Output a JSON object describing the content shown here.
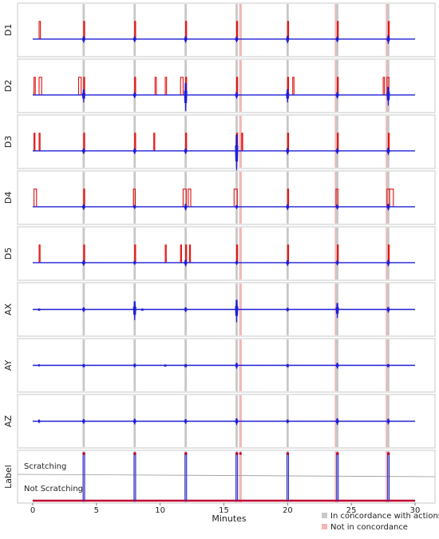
{
  "chart_data": {
    "type": "line",
    "xlabel": "Minutes",
    "x_ticks": [
      0,
      5,
      10,
      15,
      20,
      25,
      30
    ],
    "xlim": [
      0,
      30
    ],
    "colors": {
      "signal": "#1f1fd6",
      "event": "#e01010",
      "concord_band": "#c8c8c8",
      "nonconcord_band": "#f4b6b6",
      "label_line": "#c00030"
    },
    "bands": {
      "in_concordance": [
        4.0,
        8.0,
        12.0,
        16.0,
        20.0,
        23.9,
        27.9
      ],
      "not_in_concordance": [
        16.3,
        23.8,
        27.8
      ]
    },
    "panels": [
      {
        "name": "D1",
        "pulses": [
          {
            "start": 0.5,
            "end": 0.6,
            "height": 1.0
          },
          {
            "start": 4.0,
            "end": 4.05,
            "height": 1.0
          },
          {
            "start": 8.0,
            "end": 8.05,
            "height": 1.0
          },
          {
            "start": 12.0,
            "end": 12.05,
            "height": 1.0
          },
          {
            "start": 16.0,
            "end": 16.05,
            "height": 1.0
          },
          {
            "start": 20.0,
            "end": 20.05,
            "height": 1.0
          },
          {
            "start": 23.9,
            "end": 23.95,
            "height": 1.0
          },
          {
            "start": 27.9,
            "end": 27.95,
            "height": 1.0
          }
        ],
        "spikes": [
          {
            "x": 4.0,
            "amp": 0.35
          },
          {
            "x": 8.0,
            "amp": 0.3
          },
          {
            "x": 12.0,
            "amp": 0.35
          },
          {
            "x": 16.0,
            "amp": 0.3
          },
          {
            "x": 20.0,
            "amp": 0.4
          },
          {
            "x": 23.9,
            "amp": 0.3
          },
          {
            "x": 27.9,
            "amp": 0.45
          }
        ]
      },
      {
        "name": "D2",
        "pulses": [
          {
            "start": 0.1,
            "end": 0.2,
            "height": 1.0
          },
          {
            "start": 0.5,
            "end": 0.7,
            "height": 1.0
          },
          {
            "start": 3.6,
            "end": 3.8,
            "height": 1.0
          },
          {
            "start": 4.0,
            "end": 4.05,
            "height": 1.0
          },
          {
            "start": 8.0,
            "end": 8.05,
            "height": 1.0
          },
          {
            "start": 9.6,
            "end": 9.7,
            "height": 1.0
          },
          {
            "start": 10.4,
            "end": 10.5,
            "height": 1.0
          },
          {
            "start": 11.6,
            "end": 11.8,
            "height": 1.0
          },
          {
            "start": 12.0,
            "end": 12.05,
            "height": 1.0
          },
          {
            "start": 16.0,
            "end": 16.05,
            "height": 1.0
          },
          {
            "start": 20.0,
            "end": 20.05,
            "height": 1.0
          },
          {
            "start": 20.4,
            "end": 20.5,
            "height": 1.0
          },
          {
            "start": 23.9,
            "end": 23.95,
            "height": 1.0
          },
          {
            "start": 27.5,
            "end": 27.6,
            "height": 1.0
          },
          {
            "start": 27.8,
            "end": 27.95,
            "height": 1.0
          }
        ],
        "spikes": [
          {
            "x": 4.0,
            "amp": 0.7
          },
          {
            "x": 8.0,
            "amp": 0.3
          },
          {
            "x": 12.0,
            "amp": 1.5
          },
          {
            "x": 16.0,
            "amp": 0.35
          },
          {
            "x": 20.0,
            "amp": 0.7
          },
          {
            "x": 23.9,
            "amp": 0.35
          },
          {
            "x": 27.9,
            "amp": 1.0
          }
        ]
      },
      {
        "name": "D3",
        "pulses": [
          {
            "start": 0.1,
            "end": 0.15,
            "height": 1.0
          },
          {
            "start": 0.5,
            "end": 0.55,
            "height": 1.0
          },
          {
            "start": 4.0,
            "end": 4.05,
            "height": 1.0
          },
          {
            "start": 8.0,
            "end": 8.05,
            "height": 1.0
          },
          {
            "start": 9.5,
            "end": 9.55,
            "height": 1.0
          },
          {
            "start": 12.0,
            "end": 12.05,
            "height": 1.0
          },
          {
            "start": 16.0,
            "end": 16.05,
            "height": 1.0
          },
          {
            "start": 16.4,
            "end": 16.45,
            "height": 1.0
          },
          {
            "start": 20.0,
            "end": 20.05,
            "height": 1.0
          },
          {
            "start": 23.9,
            "end": 23.95,
            "height": 1.0
          },
          {
            "start": 27.9,
            "end": 27.95,
            "height": 1.0
          }
        ],
        "spikes": [
          {
            "x": 4.0,
            "amp": 0.3
          },
          {
            "x": 8.0,
            "amp": 0.3
          },
          {
            "x": 12.0,
            "amp": 0.3
          },
          {
            "x": 16.0,
            "amp": 2.0
          },
          {
            "x": 20.0,
            "amp": 0.35
          },
          {
            "x": 23.9,
            "amp": 0.3
          },
          {
            "x": 27.9,
            "amp": 0.4
          }
        ]
      },
      {
        "name": "D4",
        "pulses": [
          {
            "start": 0.1,
            "end": 0.3,
            "height": 1.0
          },
          {
            "start": 4.0,
            "end": 4.05,
            "height": 1.0
          },
          {
            "start": 7.9,
            "end": 8.05,
            "height": 1.0
          },
          {
            "start": 11.8,
            "end": 12.05,
            "height": 1.0
          },
          {
            "start": 12.2,
            "end": 12.4,
            "height": 1.0
          },
          {
            "start": 15.8,
            "end": 16.05,
            "height": 1.0
          },
          {
            "start": 20.0,
            "end": 20.05,
            "height": 1.0
          },
          {
            "start": 23.8,
            "end": 23.95,
            "height": 1.0
          },
          {
            "start": 27.8,
            "end": 28.0,
            "height": 1.0
          },
          {
            "start": 28.0,
            "end": 28.3,
            "height": 1.0
          }
        ],
        "spikes": [
          {
            "x": 4.0,
            "amp": 0.3
          },
          {
            "x": 8.0,
            "amp": 0.2
          },
          {
            "x": 12.0,
            "amp": 0.35
          },
          {
            "x": 16.0,
            "amp": 0.2
          },
          {
            "x": 20.0,
            "amp": 0.3
          },
          {
            "x": 23.9,
            "amp": 0.25
          },
          {
            "x": 27.9,
            "amp": 0.35
          }
        ]
      },
      {
        "name": "D5",
        "pulses": [
          {
            "start": 0.5,
            "end": 0.55,
            "height": 1.0
          },
          {
            "start": 4.0,
            "end": 4.05,
            "height": 1.0
          },
          {
            "start": 8.0,
            "end": 8.05,
            "height": 1.0
          },
          {
            "start": 10.4,
            "end": 10.45,
            "height": 1.0
          },
          {
            "start": 11.6,
            "end": 11.65,
            "height": 1.0
          },
          {
            "start": 12.0,
            "end": 12.05,
            "height": 1.0
          },
          {
            "start": 12.3,
            "end": 12.35,
            "height": 1.0
          },
          {
            "start": 16.0,
            "end": 16.05,
            "height": 1.0
          },
          {
            "start": 20.0,
            "end": 20.05,
            "height": 1.0
          },
          {
            "start": 23.9,
            "end": 23.95,
            "height": 1.0
          },
          {
            "start": 27.9,
            "end": 27.95,
            "height": 1.0
          }
        ],
        "spikes": [
          {
            "x": 4.0,
            "amp": 0.3
          },
          {
            "x": 8.0,
            "amp": 0.2
          },
          {
            "x": 12.0,
            "amp": 0.35
          },
          {
            "x": 16.0,
            "amp": 0.2
          },
          {
            "x": 20.0,
            "amp": 0.3
          },
          {
            "x": 23.9,
            "amp": 0.25
          },
          {
            "x": 27.9,
            "amp": 0.35
          }
        ]
      },
      {
        "name": "AX",
        "pulses": [],
        "spikes": [
          {
            "x": 0.5,
            "amp": 0.1
          },
          {
            "x": 4.0,
            "amp": 0.25
          },
          {
            "x": 8.0,
            "amp": 1.0
          },
          {
            "x": 8.6,
            "amp": 0.1
          },
          {
            "x": 12.0,
            "amp": 0.25
          },
          {
            "x": 16.0,
            "amp": 1.2
          },
          {
            "x": 20.0,
            "amp": 0.2
          },
          {
            "x": 23.9,
            "amp": 0.8
          },
          {
            "x": 27.9,
            "amp": 0.3
          }
        ]
      },
      {
        "name": "AY",
        "pulses": [],
        "spikes": [
          {
            "x": 0.5,
            "amp": 0.05
          },
          {
            "x": 4.0,
            "amp": 0.15
          },
          {
            "x": 8.0,
            "amp": 0.2
          },
          {
            "x": 10.4,
            "amp": 0.1
          },
          {
            "x": 12.0,
            "amp": 0.15
          },
          {
            "x": 16.0,
            "amp": 0.3
          },
          {
            "x": 20.0,
            "amp": 0.15
          },
          {
            "x": 23.9,
            "amp": 0.3
          },
          {
            "x": 27.9,
            "amp": 0.15
          }
        ]
      },
      {
        "name": "AZ",
        "pulses": [],
        "spikes": [
          {
            "x": 0.5,
            "amp": 0.08
          },
          {
            "x": 4.0,
            "amp": 0.25
          },
          {
            "x": 8.0,
            "amp": 0.3
          },
          {
            "x": 12.0,
            "amp": 0.25
          },
          {
            "x": 16.0,
            "amp": 0.35
          },
          {
            "x": 20.0,
            "amp": 0.2
          },
          {
            "x": 23.9,
            "amp": 0.35
          },
          {
            "x": 27.9,
            "amp": 0.3
          }
        ]
      }
    ],
    "label_panel": {
      "name": "Label",
      "levels": [
        "Scratching",
        "Not Scratching"
      ],
      "scratching_windows": [
        {
          "start": 3.95,
          "end": 4.05
        },
        {
          "start": 7.95,
          "end": 8.05
        },
        {
          "start": 11.95,
          "end": 12.05
        },
        {
          "start": 15.95,
          "end": 16.05
        },
        {
          "start": 19.95,
          "end": 20.05
        },
        {
          "start": 23.85,
          "end": 23.95
        },
        {
          "start": 27.85,
          "end": 27.95
        }
      ],
      "extra_marker": 16.3
    },
    "legend": {
      "position": "bottom-right",
      "items": [
        "In concordance with actions",
        "Not in concordance"
      ]
    }
  }
}
